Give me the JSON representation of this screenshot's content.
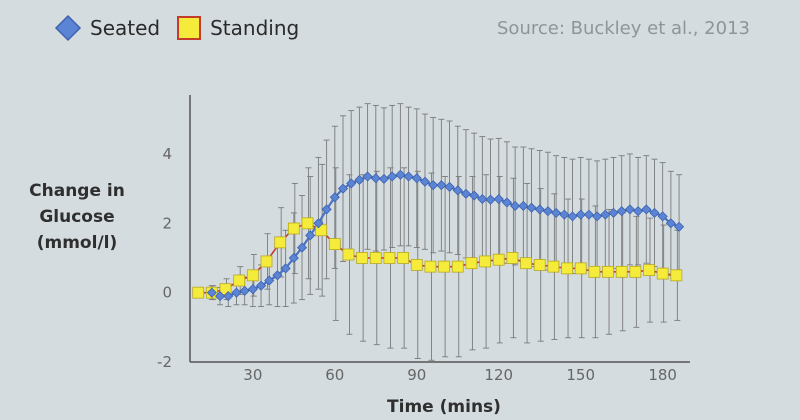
{
  "colors": {
    "background": "#d4dcdf",
    "seated_fill": "#5b84d4",
    "seated_line": "#4a72c4",
    "standing_fill": "#f4eb3a",
    "standing_stroke": "#c43b2a",
    "axis": "#555555",
    "errorbar": "#7a7a7a"
  },
  "legend": {
    "seated": "Seated",
    "standing": "Standing",
    "seated_icon": "blue-diamond-marker",
    "standing_icon": "yellow-square-marker"
  },
  "source": "Source: Buckley et al., 2013",
  "chart_data": {
    "type": "line",
    "xlabel": "Time (mins)",
    "ylabel": "Change in Glucose (mmol/l)",
    "xlim": [
      7,
      190
    ],
    "ylim": [
      -2,
      5.7
    ],
    "xticks": [
      30,
      60,
      90,
      120,
      150,
      180
    ],
    "yticks": [
      -2,
      0,
      2,
      4
    ],
    "grid": false,
    "legend_position": "top-left",
    "series": [
      {
        "name": "Seated",
        "marker": "diamond",
        "x": [
          15,
          18,
          21,
          24,
          27,
          30,
          33,
          36,
          39,
          42,
          45,
          48,
          51,
          54,
          57,
          60,
          63,
          66,
          69,
          72,
          75,
          78,
          81,
          84,
          87,
          90,
          93,
          96,
          99,
          102,
          105,
          108,
          111,
          114,
          117,
          120,
          123,
          126,
          129,
          132,
          135,
          138,
          141,
          144,
          147,
          150,
          153,
          156,
          159,
          162,
          165,
          168,
          171,
          174,
          177,
          180,
          183,
          186
        ],
        "y": [
          0.0,
          -0.1,
          -0.1,
          0.0,
          0.05,
          0.1,
          0.2,
          0.35,
          0.5,
          0.7,
          1.0,
          1.3,
          1.65,
          2.0,
          2.4,
          2.75,
          3.0,
          3.15,
          3.25,
          3.35,
          3.3,
          3.28,
          3.35,
          3.4,
          3.35,
          3.3,
          3.2,
          3.1,
          3.1,
          3.05,
          2.95,
          2.85,
          2.8,
          2.7,
          2.68,
          2.7,
          2.6,
          2.5,
          2.5,
          2.45,
          2.4,
          2.35,
          2.3,
          2.25,
          2.2,
          2.25,
          2.25,
          2.2,
          2.25,
          2.3,
          2.35,
          2.4,
          2.35,
          2.4,
          2.3,
          2.2,
          2.0,
          1.9
        ],
        "error": [
          0.2,
          0.25,
          0.3,
          0.35,
          0.4,
          0.5,
          0.6,
          0.7,
          0.9,
          1.1,
          1.3,
          1.5,
          1.7,
          1.9,
          2.0,
          2.05,
          2.1,
          2.1,
          2.1,
          2.1,
          2.1,
          2.05,
          2.05,
          2.05,
          2.0,
          2.0,
          1.95,
          1.95,
          1.9,
          1.9,
          1.85,
          1.85,
          1.8,
          1.8,
          1.75,
          1.75,
          1.75,
          1.7,
          1.7,
          1.7,
          1.7,
          1.7,
          1.65,
          1.65,
          1.65,
          1.65,
          1.6,
          1.6,
          1.6,
          1.6,
          1.6,
          1.6,
          1.55,
          1.55,
          1.55,
          1.55,
          1.5,
          1.5
        ]
      },
      {
        "name": "Standing",
        "marker": "square",
        "x": [
          10,
          15,
          20,
          25,
          30,
          35,
          40,
          45,
          50,
          55,
          60,
          65,
          70,
          75,
          80,
          85,
          90,
          95,
          100,
          105,
          110,
          115,
          120,
          125,
          130,
          135,
          140,
          145,
          150,
          155,
          160,
          165,
          170,
          175,
          180,
          185
        ],
        "y": [
          0.0,
          0.0,
          0.1,
          0.35,
          0.5,
          0.9,
          1.45,
          1.85,
          2.0,
          1.8,
          1.4,
          1.1,
          1.0,
          1.0,
          1.0,
          1.0,
          0.8,
          0.75,
          0.75,
          0.75,
          0.85,
          0.9,
          0.95,
          1.0,
          0.85,
          0.8,
          0.75,
          0.7,
          0.7,
          0.6,
          0.6,
          0.6,
          0.6,
          0.65,
          0.55,
          0.5
        ],
        "error": [
          0.1,
          0.2,
          0.3,
          0.4,
          0.6,
          0.8,
          1.0,
          1.3,
          1.6,
          1.9,
          2.2,
          2.3,
          2.4,
          2.5,
          2.6,
          2.6,
          2.7,
          2.7,
          2.6,
          2.6,
          2.5,
          2.5,
          2.4,
          2.3,
          2.3,
          2.2,
          2.1,
          2.0,
          2.0,
          1.9,
          1.8,
          1.7,
          1.6,
          1.5,
          1.4,
          1.3
        ]
      }
    ]
  }
}
